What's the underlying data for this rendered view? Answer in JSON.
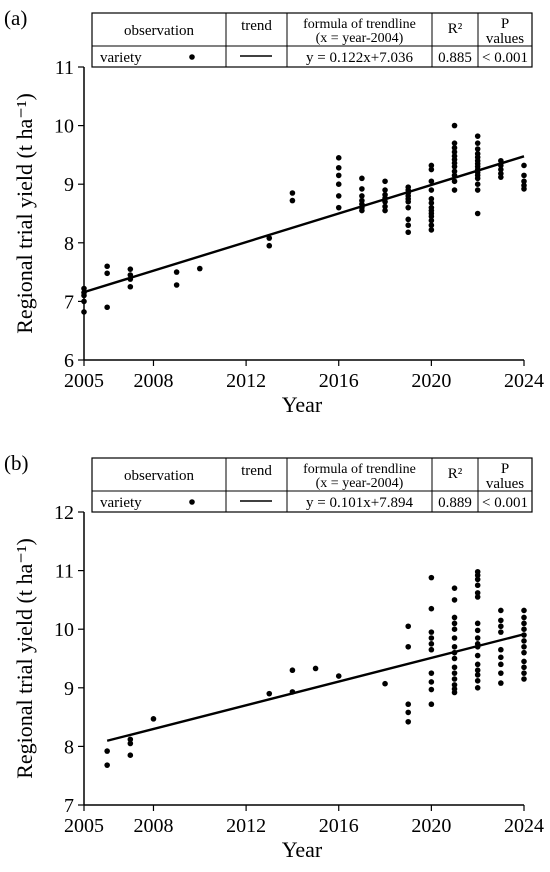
{
  "chart_data": [
    {
      "panel_label": "(a)",
      "type": "scatter",
      "xlabel": "Year",
      "ylabel": "Regional trial yield (t ha⁻¹)",
      "xlim": [
        2005,
        2024
      ],
      "ylim": [
        6,
        11
      ],
      "xticks": [
        2005,
        2008,
        2012,
        2016,
        2020,
        2024
      ],
      "yticks": [
        6,
        7,
        8,
        9,
        10,
        11
      ],
      "legend_table": {
        "headers": [
          "observation",
          "trend",
          "formula of trendline",
          "R²",
          "P"
        ],
        "headers_line2": [
          "",
          "",
          "(x = year-2004)",
          "",
          "values"
        ],
        "row": [
          "variety",
          "",
          "y = 0.122x+7.036",
          "0.885",
          "< 0.001"
        ]
      },
      "series": [
        {
          "name": "variety",
          "type": "scatter",
          "points": [
            [
              2005,
              7.22
            ],
            [
              2005,
              7.15
            ],
            [
              2005,
              7.1
            ],
            [
              2005,
              7.0
            ],
            [
              2005,
              6.82
            ],
            [
              2006,
              7.6
            ],
            [
              2006,
              7.48
            ],
            [
              2006,
              6.9
            ],
            [
              2007,
              7.55
            ],
            [
              2007,
              7.45
            ],
            [
              2007,
              7.38
            ],
            [
              2007,
              7.25
            ],
            [
              2009,
              7.5
            ],
            [
              2009,
              7.28
            ],
            [
              2010,
              7.56
            ],
            [
              2013,
              8.08
            ],
            [
              2013,
              7.95
            ],
            [
              2014,
              8.85
            ],
            [
              2014,
              8.72
            ],
            [
              2016,
              9.45
            ],
            [
              2016,
              9.28
            ],
            [
              2016,
              9.15
            ],
            [
              2016,
              9.0
            ],
            [
              2016,
              8.8
            ],
            [
              2016,
              8.6
            ],
            [
              2017,
              9.1
            ],
            [
              2017,
              8.92
            ],
            [
              2017,
              8.8
            ],
            [
              2017,
              8.72
            ],
            [
              2017,
              8.66
            ],
            [
              2017,
              8.6
            ],
            [
              2017,
              8.55
            ],
            [
              2018,
              9.05
            ],
            [
              2018,
              8.9
            ],
            [
              2018,
              8.82
            ],
            [
              2018,
              8.76
            ],
            [
              2018,
              8.7
            ],
            [
              2018,
              8.62
            ],
            [
              2018,
              8.55
            ],
            [
              2019,
              8.95
            ],
            [
              2019,
              8.9
            ],
            [
              2019,
              8.85
            ],
            [
              2019,
              8.8
            ],
            [
              2019,
              8.75
            ],
            [
              2019,
              8.7
            ],
            [
              2019,
              8.6
            ],
            [
              2019,
              8.4
            ],
            [
              2019,
              8.3
            ],
            [
              2019,
              8.18
            ],
            [
              2020,
              9.32
            ],
            [
              2020,
              9.25
            ],
            [
              2020,
              9.05
            ],
            [
              2020,
              8.9
            ],
            [
              2020,
              8.75
            ],
            [
              2020,
              8.68
            ],
            [
              2020,
              8.6
            ],
            [
              2020,
              8.55
            ],
            [
              2020,
              8.5
            ],
            [
              2020,
              8.45
            ],
            [
              2020,
              8.38
            ],
            [
              2020,
              8.3
            ],
            [
              2020,
              8.22
            ],
            [
              2021,
              10.0
            ],
            [
              2021,
              9.7
            ],
            [
              2021,
              9.62
            ],
            [
              2021,
              9.55
            ],
            [
              2021,
              9.48
            ],
            [
              2021,
              9.42
            ],
            [
              2021,
              9.36
            ],
            [
              2021,
              9.3
            ],
            [
              2021,
              9.22
            ],
            [
              2021,
              9.15
            ],
            [
              2021,
              9.05
            ],
            [
              2021,
              8.9
            ],
            [
              2022,
              9.82
            ],
            [
              2022,
              9.7
            ],
            [
              2022,
              9.6
            ],
            [
              2022,
              9.52
            ],
            [
              2022,
              9.46
            ],
            [
              2022,
              9.4
            ],
            [
              2022,
              9.35
            ],
            [
              2022,
              9.3
            ],
            [
              2022,
              9.25
            ],
            [
              2022,
              9.2
            ],
            [
              2022,
              9.15
            ],
            [
              2022,
              9.1
            ],
            [
              2022,
              9.0
            ],
            [
              2022,
              8.9
            ],
            [
              2022,
              8.5
            ],
            [
              2023,
              9.4
            ],
            [
              2023,
              9.32
            ],
            [
              2023,
              9.25
            ],
            [
              2023,
              9.18
            ],
            [
              2023,
              9.12
            ],
            [
              2024,
              9.32
            ],
            [
              2024,
              9.15
            ],
            [
              2024,
              9.05
            ],
            [
              2024,
              8.98
            ],
            [
              2024,
              8.92
            ]
          ]
        },
        {
          "name": "trend",
          "type": "line",
          "points": [
            [
              2005,
              7.158
            ],
            [
              2024,
              9.476
            ]
          ]
        }
      ]
    },
    {
      "panel_label": "(b)",
      "type": "scatter",
      "xlabel": "Year",
      "ylabel": "Regional trial yield (t ha⁻¹)",
      "xlim": [
        2005,
        2024
      ],
      "ylim": [
        7,
        12
      ],
      "xticks": [
        2005,
        2008,
        2012,
        2016,
        2020,
        2024
      ],
      "yticks": [
        7,
        8,
        9,
        10,
        11,
        12
      ],
      "legend_table": {
        "headers": [
          "observation",
          "trend",
          "formula of trendline",
          "R²",
          "P"
        ],
        "headers_line2": [
          "",
          "",
          "(x = year-2004)",
          "",
          "values"
        ],
        "row": [
          "variety",
          "",
          "y = 0.101x+7.894",
          "0.889",
          "< 0.001"
        ]
      },
      "series": [
        {
          "name": "variety",
          "type": "scatter",
          "points": [
            [
              2006,
              7.92
            ],
            [
              2006,
              7.68
            ],
            [
              2007,
              8.12
            ],
            [
              2007,
              8.05
            ],
            [
              2007,
              7.85
            ],
            [
              2008,
              8.47
            ],
            [
              2013,
              8.9
            ],
            [
              2014,
              9.3
            ],
            [
              2014,
              8.93
            ],
            [
              2015,
              9.33
            ],
            [
              2016,
              9.2
            ],
            [
              2018,
              9.07
            ],
            [
              2019,
              10.05
            ],
            [
              2019,
              9.7
            ],
            [
              2019,
              8.72
            ],
            [
              2019,
              8.58
            ],
            [
              2019,
              8.42
            ],
            [
              2020,
              10.88
            ],
            [
              2020,
              10.35
            ],
            [
              2020,
              9.95
            ],
            [
              2020,
              9.85
            ],
            [
              2020,
              9.75
            ],
            [
              2020,
              9.65
            ],
            [
              2020,
              9.25
            ],
            [
              2020,
              9.1
            ],
            [
              2020,
              8.97
            ],
            [
              2020,
              8.72
            ],
            [
              2021,
              10.7
            ],
            [
              2021,
              10.5
            ],
            [
              2021,
              10.2
            ],
            [
              2021,
              10.1
            ],
            [
              2021,
              10.0
            ],
            [
              2021,
              9.85
            ],
            [
              2021,
              9.7
            ],
            [
              2021,
              9.6
            ],
            [
              2021,
              9.5
            ],
            [
              2021,
              9.35
            ],
            [
              2021,
              9.25
            ],
            [
              2021,
              9.15
            ],
            [
              2021,
              9.05
            ],
            [
              2021,
              8.98
            ],
            [
              2021,
              8.92
            ],
            [
              2022,
              10.98
            ],
            [
              2022,
              10.92
            ],
            [
              2022,
              10.85
            ],
            [
              2022,
              10.75
            ],
            [
              2022,
              10.62
            ],
            [
              2022,
              10.55
            ],
            [
              2022,
              10.1
            ],
            [
              2022,
              9.98
            ],
            [
              2022,
              9.85
            ],
            [
              2022,
              9.75
            ],
            [
              2022,
              9.7
            ],
            [
              2022,
              9.55
            ],
            [
              2022,
              9.4
            ],
            [
              2022,
              9.3
            ],
            [
              2022,
              9.22
            ],
            [
              2022,
              9.12
            ],
            [
              2022,
              9.0
            ],
            [
              2023,
              10.32
            ],
            [
              2023,
              10.15
            ],
            [
              2023,
              10.05
            ],
            [
              2023,
              9.95
            ],
            [
              2023,
              9.65
            ],
            [
              2023,
              9.52
            ],
            [
              2023,
              9.4
            ],
            [
              2023,
              9.25
            ],
            [
              2023,
              9.08
            ],
            [
              2024,
              10.32
            ],
            [
              2024,
              10.2
            ],
            [
              2024,
              10.1
            ],
            [
              2024,
              10.0
            ],
            [
              2024,
              9.9
            ],
            [
              2024,
              9.8
            ],
            [
              2024,
              9.7
            ],
            [
              2024,
              9.6
            ],
            [
              2024,
              9.45
            ],
            [
              2024,
              9.35
            ],
            [
              2024,
              9.25
            ],
            [
              2024,
              9.15
            ]
          ]
        },
        {
          "name": "trend",
          "type": "line",
          "points": [
            [
              2006,
              8.096
            ],
            [
              2024,
              9.914
            ]
          ]
        }
      ]
    }
  ]
}
